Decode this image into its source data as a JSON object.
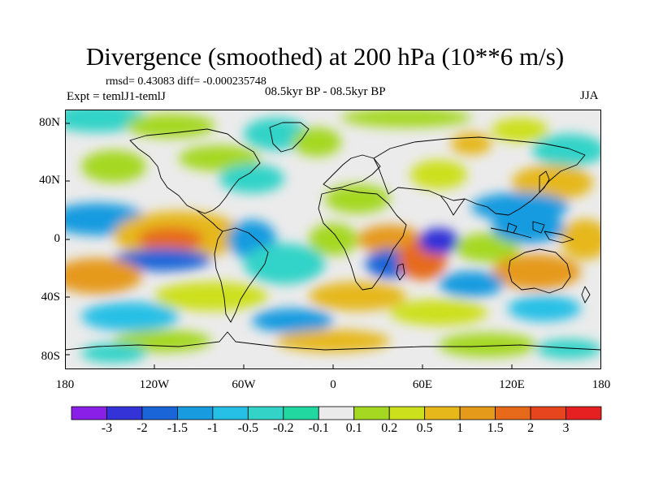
{
  "title": "Divergence (smoothed) at 200 hPa (10**6 m/s)",
  "stats": "rmsd= 0.43083 diff= -0.000235748",
  "experiment": "Expt = temlJ1-temlJ",
  "center_label": "08.5kyr BP - 08.5kyr BP",
  "season": "JJA",
  "map": {
    "projection": "cylindrical equidistant",
    "lon_range": [
      -180,
      180
    ],
    "lat_range": [
      -90,
      90
    ],
    "y_axis_labels": [
      "80N",
      "40N",
      "0",
      "40S",
      "80S"
    ],
    "x_axis_labels": [
      "180",
      "120W",
      "60W",
      "0",
      "60E",
      "120E",
      "180"
    ]
  },
  "colorbar": {
    "labels": [
      "-3",
      "-2",
      "-1.5",
      "-1",
      "-0.5",
      "-0.2",
      "-0.1",
      "0.1",
      "0.2",
      "0.5",
      "1",
      "1.5",
      "2",
      "3"
    ],
    "colors": [
      "#8a1fe8",
      "#3333d8",
      "#1a66d8",
      "#199be0",
      "#26c0e6",
      "#33d3c8",
      "#20d8a0",
      "#ebebeb",
      "#a5d820",
      "#cde01c",
      "#e6b81a",
      "#e69a1a",
      "#e66a1a",
      "#e6451e",
      "#e62020"
    ]
  }
}
